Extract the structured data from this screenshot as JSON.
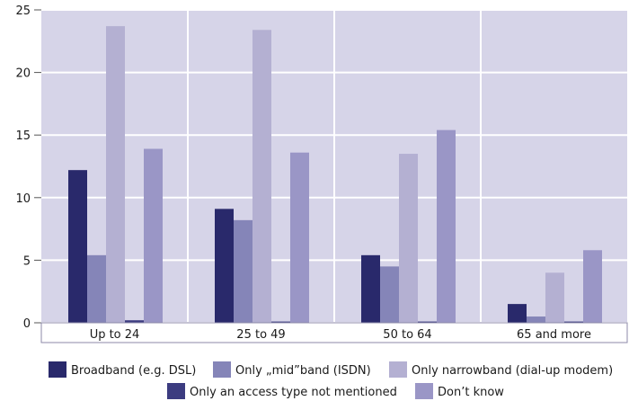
{
  "chart_data": {
    "type": "bar",
    "categories": [
      "Up to 24",
      "25 to 49",
      "50 to 64",
      "65 and more"
    ],
    "series": [
      {
        "name": "Broadband (e.g. DSL)",
        "color": "#29296b",
        "values": [
          12.2,
          9.1,
          5.4,
          1.5
        ]
      },
      {
        "name": "Only „mid”band (ISDN)",
        "color": "#8585b8",
        "values": [
          5.4,
          8.2,
          4.5,
          0.5
        ]
      },
      {
        "name": "Only narrowband (dial-up modem)",
        "color": "#b4b0d2",
        "values": [
          23.7,
          23.4,
          13.5,
          4.0
        ]
      },
      {
        "name": "Only an access type not mentioned",
        "color": "#3c3c80",
        "values": [
          0.2,
          0.1,
          0.1,
          0.1
        ]
      },
      {
        "name": "Don’t know",
        "color": "#9a96c6",
        "values": [
          13.9,
          13.6,
          15.4,
          5.8
        ]
      }
    ],
    "yticks": [
      "0",
      "5",
      "10",
      "15",
      "20",
      "25"
    ],
    "ylim": [
      0,
      25
    ],
    "grid": true,
    "legend_position": "bottom",
    "plot_background": "#d6d4e8",
    "gridline_color": "#ffffff"
  }
}
